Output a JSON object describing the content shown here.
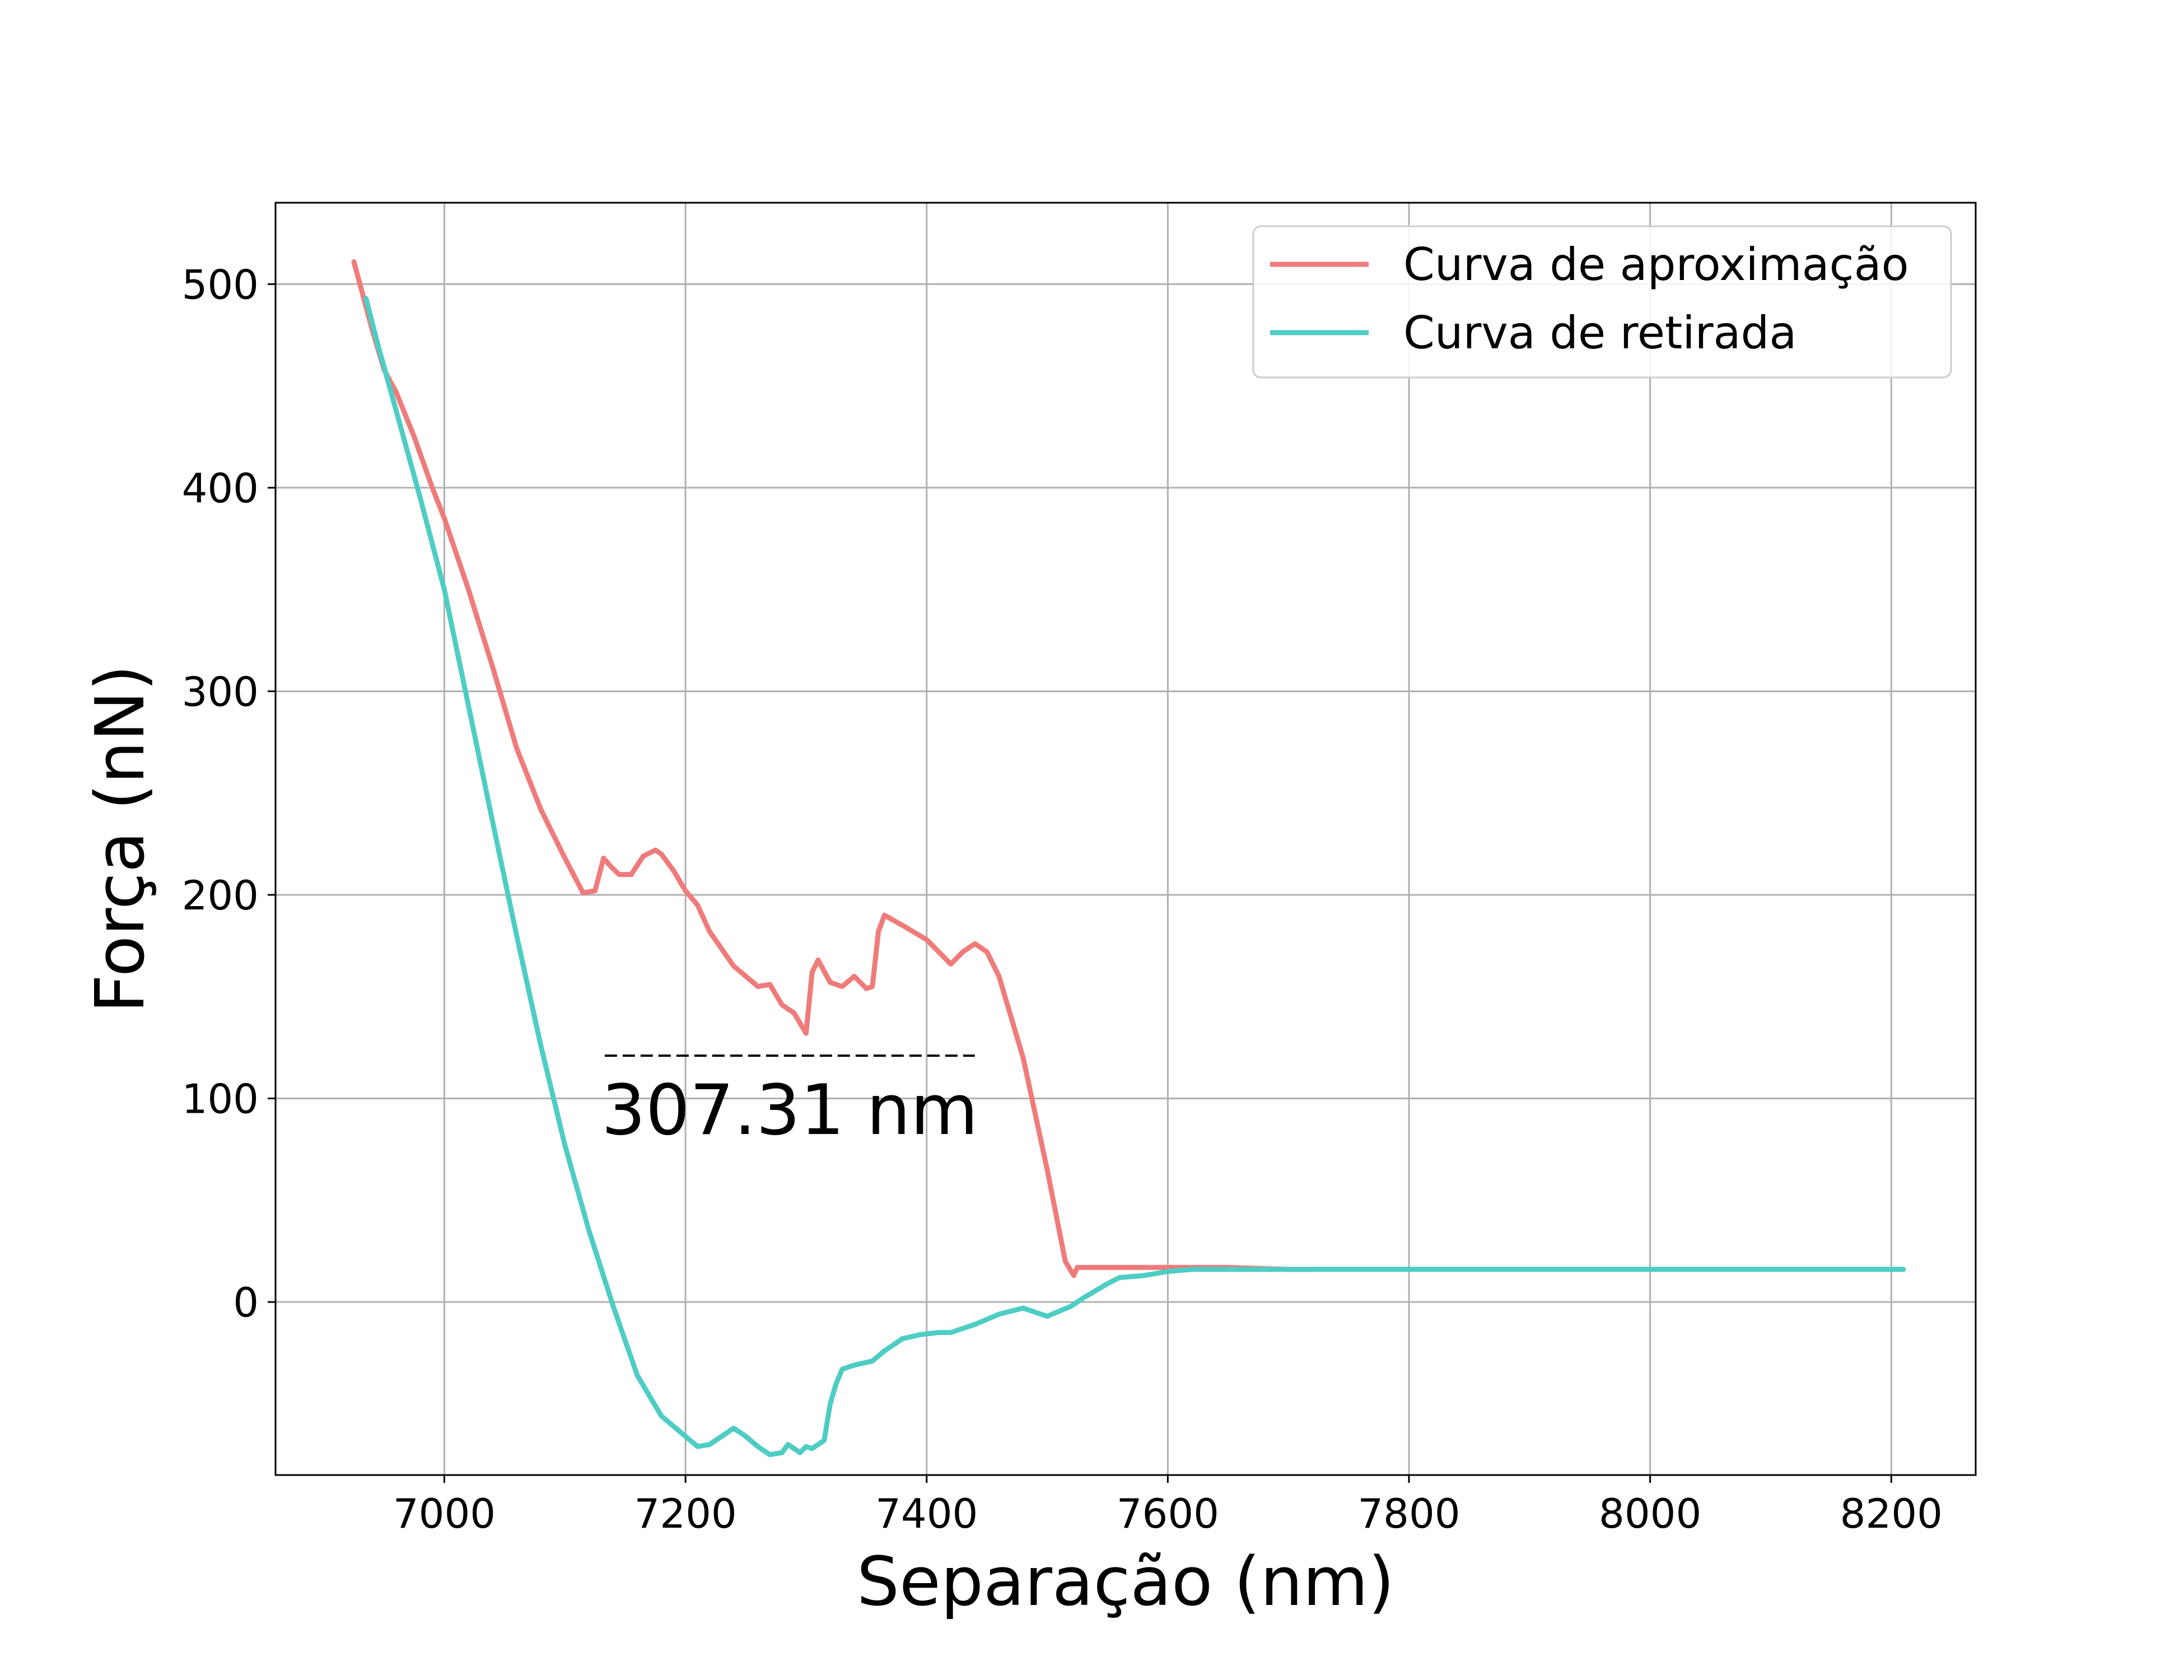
{
  "chart_data": {
    "type": "line",
    "title": "",
    "xlabel": "Separação (nm)",
    "ylabel": "Força (nN)",
    "xlim": [
      6860,
      8270
    ],
    "ylim": [
      -85,
      540
    ],
    "xticks": [
      7000,
      7200,
      7400,
      7600,
      7800,
      8000,
      8200
    ],
    "yticks": [
      0,
      100,
      200,
      300,
      400,
      500
    ],
    "grid": true,
    "legend_position": "top-right",
    "series": [
      {
        "name": "Curva de aproximação",
        "color": "#ef7b7b",
        "x": [
          6925,
          6930,
          6940,
          6950,
          6960,
          6975,
          6990,
          7000,
          7020,
          7040,
          7060,
          7080,
          7100,
          7115,
          7125,
          7132,
          7138,
          7145,
          7155,
          7165,
          7175,
          7180,
          7190,
          7200,
          7210,
          7220,
          7240,
          7260,
          7270,
          7280,
          7290,
          7300,
          7305,
          7310,
          7320,
          7330,
          7340,
          7350,
          7355,
          7360,
          7365,
          7380,
          7400,
          7420,
          7430,
          7440,
          7450,
          7460,
          7480,
          7500,
          7515,
          7522,
          7525,
          7540,
          7600,
          7650,
          7700,
          7720
        ],
        "y": [
          511,
          500,
          478,
          458,
          447,
          425,
          400,
          385,
          350,
          312,
          272,
          242,
          218,
          201,
          202,
          218,
          214,
          210,
          210,
          219,
          222,
          220,
          212,
          202,
          195,
          182,
          165,
          155,
          156,
          146,
          142,
          132,
          162,
          168,
          157,
          155,
          160,
          154,
          155,
          182,
          190,
          185,
          178,
          166,
          172,
          176,
          172,
          160,
          120,
          65,
          20,
          13,
          17,
          17,
          17,
          17,
          16,
          16
        ]
      },
      {
        "name": "Curva de retirada",
        "color": "#4ecdc4",
        "x": [
          6935,
          6945,
          6960,
          6980,
          7000,
          7020,
          7040,
          7060,
          7080,
          7100,
          7120,
          7140,
          7160,
          7180,
          7200,
          7210,
          7220,
          7230,
          7240,
          7250,
          7260,
          7270,
          7280,
          7285,
          7290,
          7295,
          7300,
          7305,
          7310,
          7315,
          7320,
          7325,
          7330,
          7340,
          7355,
          7365,
          7380,
          7395,
          7410,
          7420,
          7440,
          7460,
          7480,
          7500,
          7520,
          7530,
          7550,
          7560,
          7580,
          7600,
          7620,
          7650,
          7700,
          7800,
          8000,
          8100,
          8210
        ],
        "y": [
          493,
          470,
          438,
          395,
          350,
          293,
          236,
          180,
          126,
          77,
          35,
          -2,
          -36,
          -56,
          -66,
          -71,
          -70,
          -66,
          -62,
          -66,
          -71,
          -75,
          -74,
          -70,
          -72,
          -74,
          -71,
          -72,
          -70,
          -68,
          -50,
          -40,
          -33,
          -31,
          -29,
          -24,
          -18,
          -16,
          -15,
          -15,
          -11,
          -6,
          -3,
          -7,
          -2,
          2,
          9,
          12,
          13,
          15,
          16,
          16,
          16,
          16,
          16,
          16,
          16
        ]
      }
    ],
    "annotations": [
      {
        "text": "307.31 nm",
        "line_y": 121,
        "x_start": 7133,
        "x_end": 7440
      }
    ]
  }
}
